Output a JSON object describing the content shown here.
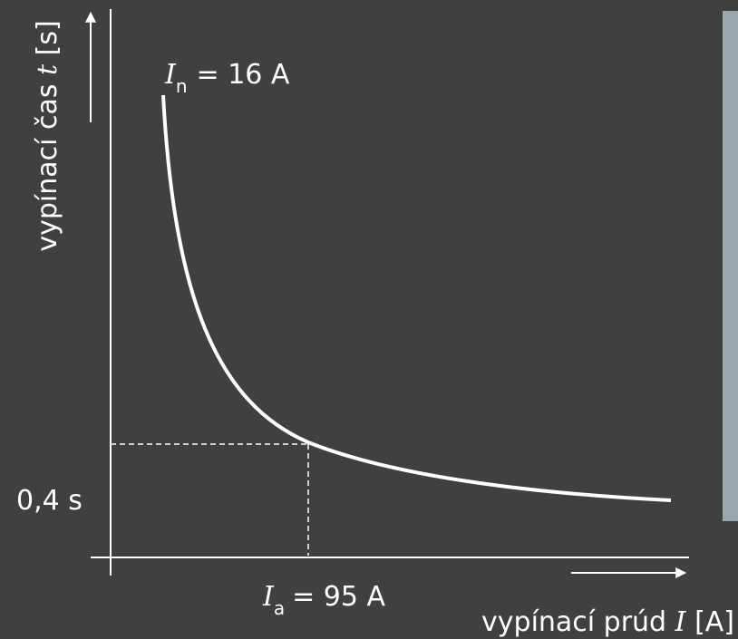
{
  "y_axis_label": {
    "text": "vypínací čas",
    "symbol": "t",
    "unit": "[s]"
  },
  "curve_label": {
    "symbol": "I",
    "subscript": "n",
    "text": "= 16 A"
  },
  "time_marker": "0,4 s",
  "current_marker": {
    "symbol": "I",
    "subscript": "a",
    "text": "= 95 A"
  },
  "x_axis_label": {
    "text": "vypínací prúd",
    "symbol": "I",
    "unit": "[A]"
  }
}
